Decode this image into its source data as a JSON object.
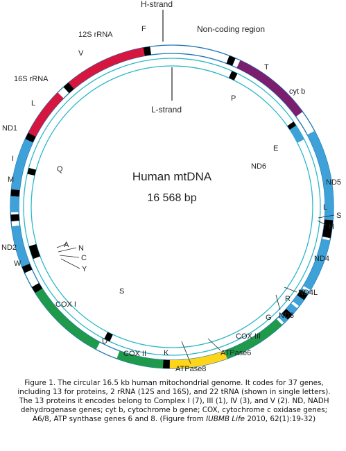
{
  "colors": {
    "complex_I": "#3ea2d9",
    "rrna": "#d6163f",
    "cytb": "#7b1e6e",
    "cox": "#1f9a4a",
    "atp": "#ffd51a",
    "trna": "#000000",
    "noncoding": "#ffffff",
    "outline": "#1f77b4",
    "inner_ring": "#2ab7c7"
  },
  "diagram": {
    "title": "Human mtDNA",
    "size": "16 568 bp",
    "strand_labels": {
      "h": "H-strand",
      "l": "L-strand"
    },
    "region_labels": {
      "noncoding": "Non-coding region"
    },
    "genes": [
      {
        "label": "12S rRNA"
      },
      {
        "label": "16S rRNA"
      },
      {
        "label": "ND1"
      },
      {
        "label": "ND2"
      },
      {
        "label": "COX I"
      },
      {
        "label": "COX II"
      },
      {
        "label": "ATPase8"
      },
      {
        "label": "ATPase6"
      },
      {
        "label": "COX III"
      },
      {
        "label": "ND3"
      },
      {
        "label": "ND4L"
      },
      {
        "label": "ND4"
      },
      {
        "label": "ND5"
      },
      {
        "label": "ND6"
      },
      {
        "label": "cyt b"
      }
    ],
    "trnas_outer": [
      "F",
      "V",
      "L",
      "I",
      "M",
      "W",
      "A",
      "N",
      "C",
      "Y",
      "D",
      "K",
      "G",
      "R",
      "H",
      "S",
      "L",
      "T"
    ],
    "trnas_inner": [
      "P",
      "E",
      "Q",
      "S"
    ]
  },
  "caption": {
    "main": "Figure 1. The circular 16.5 kb human mitochondrial genome. It codes for 37 genes, including 13 for proteins, 2 rRNA (12S and 16S), and 22 tRNA (shown in single letters). The 13 proteins it encodes belong to Complex I (7), III (1), IV (3), and V (2). ND, NADH dehydrogenase genes; cyt b, cytochrome b gene; COX, cytochrome c oxidase genes; A6/8, ATP synthase genes 6 and 8. (Figure from ",
    "journal": "IUBMB Life",
    "citation": " 2010, 62(1):19-32)"
  }
}
